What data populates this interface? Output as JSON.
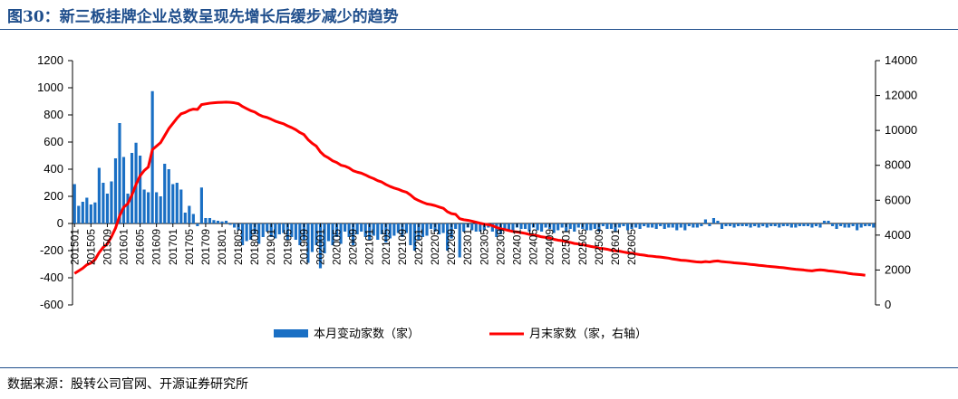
{
  "title": "图30：新三板挂牌企业总数呈现先增长后缓步减少的趋势",
  "source": "数据来源：股转公司官网、开源证券研究所",
  "colors": {
    "bar": "#1a6fc4",
    "line": "#ff0000",
    "title": "#1f4e8c"
  },
  "chart_data": {
    "type": "bar+line",
    "x_tick_labels": [
      "201501",
      "201505",
      "201509",
      "201601",
      "201605",
      "201609",
      "201701",
      "201705",
      "201709",
      "201801",
      "201805",
      "201809",
      "201901",
      "201905",
      "201909",
      "202001",
      "202005",
      "202009",
      "202101",
      "202105",
      "202109",
      "202201",
      "202205",
      "202209",
      "202301",
      "202305",
      "202309",
      "202401",
      "202405",
      "202409",
      "202501",
      "202505",
      "202509",
      "202601",
      "202605"
    ],
    "y_left": {
      "min": -600,
      "max": 1200,
      "ticks": [
        -600,
        -400,
        -200,
        0,
        200,
        400,
        600,
        800,
        1000,
        1200
      ]
    },
    "y_right": {
      "min": 0,
      "max": 14000,
      "ticks": [
        0,
        2000,
        4000,
        6000,
        8000,
        10000,
        12000,
        14000
      ]
    },
    "grid": false,
    "legend_position": "bottom",
    "series": [
      {
        "name": "本月变动家数（家）",
        "type": "bar",
        "axis": "left",
        "values": [
          290,
          130,
          160,
          190,
          140,
          155,
          410,
          300,
          220,
          310,
          480,
          740,
          490,
          220,
          520,
          595,
          500,
          250,
          230,
          975,
          230,
          200,
          440,
          400,
          290,
          300,
          250,
          80,
          130,
          70,
          -20,
          265,
          40,
          40,
          25,
          20,
          15,
          20,
          -10,
          -30,
          -50,
          -160,
          -130,
          -120,
          -80,
          -150,
          -100,
          -60,
          -100,
          -110,
          -80,
          -70,
          -120,
          -100,
          -120,
          -160,
          -120,
          -290,
          -210,
          -160,
          -330,
          -220,
          -130,
          -160,
          -100,
          -150,
          -60,
          -100,
          -160,
          -80,
          -60,
          -100,
          -120,
          -90,
          -120,
          -80,
          -140,
          -110,
          -90,
          -70,
          -100,
          -70,
          -160,
          -200,
          -120,
          -100,
          -90,
          -40,
          -60,
          -80,
          -70,
          -200,
          -110,
          -40,
          -250,
          -60,
          -30,
          -50,
          -60,
          -60,
          -50,
          -30,
          -60,
          -100,
          -80,
          -40,
          -60,
          -50,
          -30,
          -40,
          -40,
          -60,
          -30,
          -50,
          -60,
          -30,
          -40,
          -70,
          -50,
          -30,
          -60,
          -40,
          -60,
          -30,
          -40,
          -50,
          -50,
          -40,
          -60,
          -20,
          -40,
          -40,
          -60,
          -30,
          -20,
          -50,
          -40,
          -30,
          -40,
          -20,
          -30,
          -30,
          -40,
          -20,
          -40,
          -30,
          -30,
          -50,
          -30,
          -50,
          -20,
          -30,
          -30,
          -20,
          30,
          -20,
          40,
          20,
          -40,
          -20,
          -20,
          -30,
          -20,
          -20,
          -20,
          -30,
          -20,
          -30,
          -20,
          -30,
          -20,
          -20,
          -30,
          -20,
          -20,
          -30,
          -30,
          -20,
          -20,
          -20,
          -30,
          -20,
          -30,
          20,
          20,
          -20,
          -40,
          -20,
          -30,
          -30,
          -20,
          -50,
          -30,
          -20,
          -20,
          -30
        ]
      },
      {
        "name": "月末家数（家，右轴）",
        "type": "line",
        "axis": "right",
        "values": [
          1800,
          1950,
          2100,
          2300,
          2400,
          2600,
          3000,
          3300,
          3500,
          3900,
          4400,
          5100,
          5600,
          5800,
          6300,
          6900,
          7400,
          7700,
          7900,
          8900,
          9100,
          9300,
          9700,
          10100,
          10400,
          10700,
          10950,
          11030,
          11150,
          11220,
          11200,
          11480,
          11520,
          11560,
          11580,
          11600,
          11610,
          11620,
          11610,
          11580,
          11530,
          11370,
          11250,
          11130,
          11050,
          10900,
          10800,
          10740,
          10640,
          10530,
          10450,
          10380,
          10260,
          10160,
          10040,
          9880,
          9760,
          9470,
          9260,
          9100,
          8770,
          8550,
          8420,
          8260,
          8160,
          8010,
          7950,
          7850,
          7690,
          7610,
          7550,
          7450,
          7330,
          7240,
          7120,
          7040,
          6900,
          6790,
          6700,
          6630,
          6530,
          6460,
          6300,
          6100,
          5980,
          5880,
          5790,
          5750,
          5690,
          5610,
          5540,
          5340,
          5230,
          5190,
          4940,
          4880,
          4850,
          4800,
          4740,
          4680,
          4630,
          4600,
          4540,
          4440,
          4360,
          4320,
          4260,
          4210,
          4180,
          4140,
          4100,
          4040,
          4010,
          3960,
          3900,
          3870,
          3830,
          3760,
          3710,
          3680,
          3620,
          3580,
          3520,
          3490,
          3450,
          3400,
          3350,
          3310,
          3250,
          3230,
          3190,
          3130,
          3100,
          3080,
          3030,
          2990,
          2960,
          2920,
          2880,
          2850,
          2810,
          2790,
          2760,
          2740,
          2710,
          2680,
          2630,
          2600,
          2560,
          2550,
          2520,
          2490,
          2460,
          2450,
          2480,
          2460,
          2500,
          2520,
          2480,
          2460,
          2440,
          2410,
          2390,
          2370,
          2350,
          2320,
          2300,
          2270,
          2250,
          2220,
          2200,
          2180,
          2150,
          2130,
          2100,
          2070,
          2040,
          2020,
          2000,
          1970,
          1950,
          1990,
          2010,
          1990,
          1950,
          1930,
          1900,
          1870,
          1850,
          1800,
          1770,
          1750,
          1730,
          1700
        ]
      }
    ]
  },
  "legend": {
    "bar_label": "本月变动家数（家）",
    "line_label": "月末家数（家，右轴）"
  }
}
